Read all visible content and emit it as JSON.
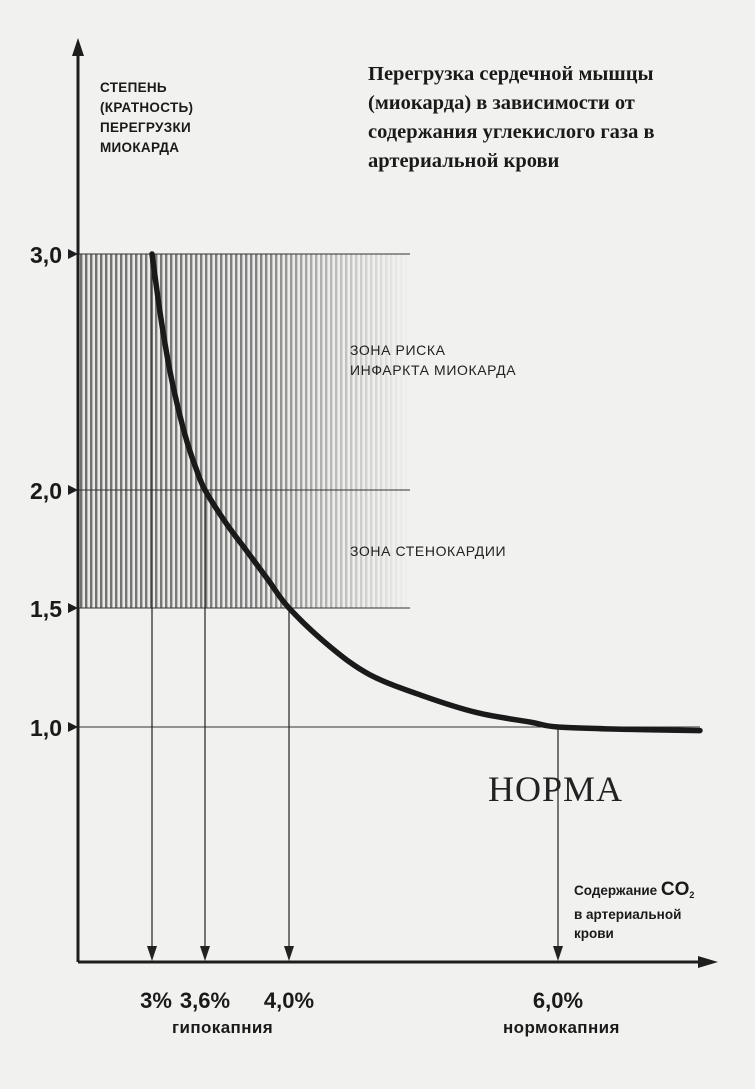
{
  "chart_data": {
    "type": "line",
    "title": "Перегрузка сердечной мышцы (миокарда) в зависимости от содержания углекислого газа в артериальной крови",
    "ylabel_lines": [
      "СТЕПЕНЬ",
      "(КРАТНОСТЬ)",
      "ПЕРЕГРУЗКИ",
      "МИОКАРДА"
    ],
    "xlabel": {
      "prefix": "Содержание ",
      "chem": "CO",
      "sub": "2",
      "line2": "в артериальной",
      "line3": "крови"
    },
    "y_ticks": [
      {
        "value": 1.0,
        "label": "1,0"
      },
      {
        "value": 1.5,
        "label": "1,5"
      },
      {
        "value": 2.0,
        "label": "2,0"
      },
      {
        "value": 3.0,
        "label": "3,0"
      }
    ],
    "x_ticks": [
      {
        "value": 3.0,
        "label": "3%"
      },
      {
        "value": 3.6,
        "label": "3,6%"
      },
      {
        "value": 4.0,
        "label": "4,0%"
      },
      {
        "value": 6.0,
        "label": "6,0%"
      }
    ],
    "series": [
      {
        "x": [
          3.0,
          3.1,
          3.2,
          3.3,
          3.4,
          3.5,
          3.6,
          3.7,
          3.8,
          3.9,
          4.0,
          4.3,
          4.6,
          5.0,
          5.4,
          5.8,
          6.0,
          6.5,
          7.0
        ],
        "y": [
          3.0,
          2.73,
          2.51,
          2.34,
          2.2,
          2.09,
          2.0,
          1.86,
          1.74,
          1.62,
          1.5,
          1.34,
          1.22,
          1.13,
          1.06,
          1.02,
          1.0,
          0.99,
          0.985
        ]
      }
    ],
    "reference_points": [
      {
        "x": 3.6,
        "y": 2.0
      },
      {
        "x": 4.0,
        "y": 1.5
      },
      {
        "x": 6.0,
        "y": 1.0
      }
    ],
    "zones": [
      {
        "label_lines": [
          "ЗОНА РИСКА",
          "ИНФАРКТА МИОКАРДА"
        ],
        "y_range": [
          2.0,
          3.0
        ]
      },
      {
        "label_lines": [
          "ЗОНА СТЕНОКАРДИИ"
        ],
        "y_range": [
          1.5,
          2.0
        ]
      }
    ],
    "annotations": {
      "norm": "НОРМА",
      "hypocapnia": "гипокапния",
      "normocapnia": "нормокапния"
    }
  }
}
